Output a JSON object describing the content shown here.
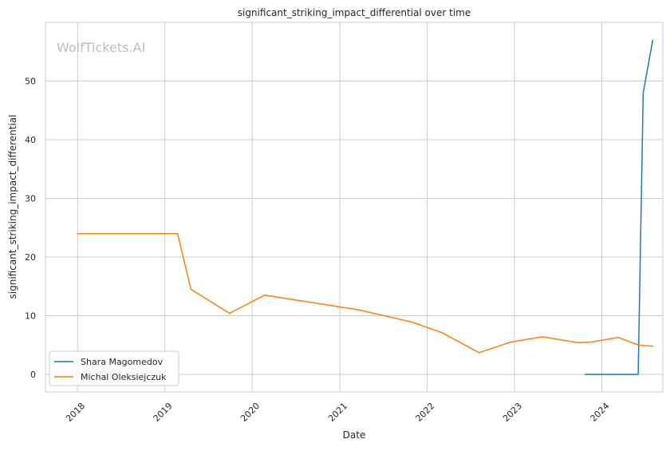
{
  "chart_data": {
    "type": "line",
    "title": "significant_striking_impact_differential over time",
    "xlabel": "Date",
    "ylabel": "significant_striking_impact_differential",
    "watermark": "WolfTickets.AI",
    "x_ticks": [
      "2018",
      "2019",
      "2020",
      "2021",
      "2022",
      "2023",
      "2024"
    ],
    "y_ticks": [
      0,
      10,
      20,
      30,
      40,
      50
    ],
    "xlim": [
      "2017-08-20",
      "2024-09-12"
    ],
    "ylim": [
      -3,
      60
    ],
    "grid": true,
    "legend_position": "lower-left",
    "series": [
      {
        "name": "Shara Magomedov",
        "color": "#1f77b4",
        "points": [
          {
            "x": "2023-10-21",
            "y": 0
          },
          {
            "x": "2024-06-01",
            "y": 0
          },
          {
            "x": "2024-06-22",
            "y": 48
          },
          {
            "x": "2024-08-01",
            "y": 57
          }
        ]
      },
      {
        "name": "Michal Oleksiejczuk",
        "color": "#ff7f0e",
        "points": [
          {
            "x": "2017-12-30",
            "y": 24
          },
          {
            "x": "2019-02-23",
            "y": 24
          },
          {
            "x": "2019-04-20",
            "y": 14.5
          },
          {
            "x": "2019-09-28",
            "y": 10.4
          },
          {
            "x": "2020-02-22",
            "y": 13.5
          },
          {
            "x": "2021-03-20",
            "y": 11
          },
          {
            "x": "2021-10-30",
            "y": 8.9
          },
          {
            "x": "2022-03-05",
            "y": 7.1
          },
          {
            "x": "2022-08-06",
            "y": 3.7
          },
          {
            "x": "2022-12-17",
            "y": 5.5
          },
          {
            "x": "2023-04-29",
            "y": 6.4
          },
          {
            "x": "2023-09-23",
            "y": 5.4
          },
          {
            "x": "2023-11-18",
            "y": 5.5
          },
          {
            "x": "2024-03-09",
            "y": 6.3
          },
          {
            "x": "2024-06-01",
            "y": 5
          },
          {
            "x": "2024-08-03",
            "y": 4.8
          }
        ]
      }
    ]
  }
}
